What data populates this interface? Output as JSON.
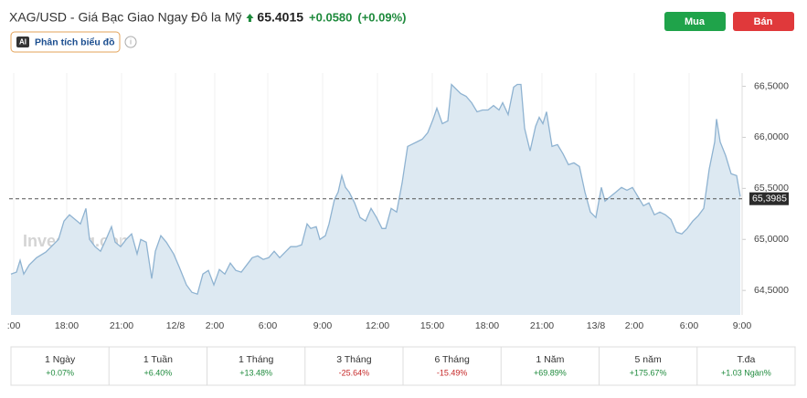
{
  "header": {
    "symbol": "XAG/USD - Giá Bạc Giao Ngay Đô la Mỹ",
    "price": "65.4015",
    "change": "+0.0580",
    "change_pct": "(+0.09%)",
    "ai_badge": "AI",
    "analysis": "Phân tích biểu đồ"
  },
  "buttons": {
    "buy": "Mua",
    "sell": "Bán"
  },
  "chart_data": {
    "type": "area",
    "watermark": "Investing.com",
    "color": "#8fb3d1",
    "fill_color": "#dde9f2",
    "grid": true,
    "x": [
      -0.15,
      0.15,
      0.35,
      0.55,
      0.85,
      1.25,
      1.75,
      2.15,
      2.45,
      2.75,
      3.05,
      3.35,
      3.65,
      3.95,
      4.15,
      4.45,
      4.75,
      5.05,
      5.35,
      5.55,
      5.85,
      6.15,
      6.45,
      6.75,
      6.95,
      7.25,
      7.55,
      7.75,
      8.05,
      8.35,
      8.75,
      9.05,
      9.45,
      9.75,
      10.05,
      10.35,
      10.65,
      10.95,
      11.25,
      11.55,
      11.85,
      12.15,
      12.45,
      12.75,
      13.05,
      13.35,
      13.65,
      13.95,
      14.25,
      14.55,
      14.85,
      15.15,
      15.45,
      15.75,
      16.05,
      16.25,
      16.55,
      16.75,
      17.05,
      17.25,
      17.55,
      17.75,
      17.95,
      18.15,
      18.35,
      18.65,
      18.95,
      19.25,
      19.55,
      19.85,
      20.15,
      20.35,
      20.65,
      20.95,
      21.25,
      21.55,
      21.75,
      22.05,
      22.35,
      22.65,
      22.95,
      23.15,
      23.45,
      23.75,
      23.95,
      24.15,
      24.45,
      24.75,
      25.05,
      25.35,
      25.65,
      25.95,
      26.25,
      26.55,
      26.75,
      27.05,
      27.35,
      27.55,
      27.75,
      27.95,
      28.25,
      28.55,
      28.75,
      28.95,
      29.15,
      29.45,
      29.75,
      30.05,
      30.35,
      30.65,
      30.95,
      31.25,
      31.55,
      31.85,
      32.15,
      32.35,
      32.65,
      32.95,
      33.25,
      33.55,
      33.85,
      34.15,
      34.45,
      34.75,
      35.05,
      35.35,
      35.65,
      35.95,
      36.25,
      36.55,
      36.85,
      37.15,
      37.45,
      37.75,
      38.05,
      38.35,
      38.45,
      38.65,
      38.95,
      39.25,
      39.55,
      39.75
    ],
    "values": [
      64.661,
      64.679,
      64.795,
      64.661,
      64.75,
      64.821,
      64.875,
      64.946,
      65.0,
      65.179,
      65.241,
      65.196,
      65.152,
      65.304,
      65.0,
      64.929,
      64.884,
      65.0,
      65.125,
      64.973,
      64.929,
      65.0,
      65.054,
      64.857,
      65.0,
      64.973,
      64.616,
      64.884,
      65.036,
      64.973,
      64.857,
      64.732,
      64.554,
      64.482,
      64.464,
      64.661,
      64.696,
      64.554,
      64.705,
      64.661,
      64.768,
      64.696,
      64.679,
      64.75,
      64.821,
      64.839,
      64.804,
      64.821,
      64.884,
      64.821,
      64.875,
      64.929,
      64.929,
      64.946,
      65.152,
      65.107,
      65.125,
      65.0,
      65.036,
      65.152,
      65.393,
      65.464,
      65.625,
      65.509,
      65.464,
      65.357,
      65.214,
      65.179,
      65.304,
      65.214,
      65.107,
      65.107,
      65.304,
      65.268,
      65.554,
      65.911,
      65.929,
      65.955,
      65.982,
      66.045,
      66.179,
      66.286,
      66.134,
      66.161,
      66.518,
      66.482,
      66.429,
      66.402,
      66.339,
      66.25,
      66.268,
      66.268,
      66.312,
      66.268,
      66.339,
      66.223,
      66.491,
      66.518,
      66.518,
      66.089,
      65.866,
      66.107,
      66.196,
      66.134,
      66.25,
      65.911,
      65.929,
      65.839,
      65.732,
      65.75,
      65.714,
      65.464,
      65.268,
      65.214,
      65.509,
      65.375,
      65.42,
      65.464,
      65.509,
      65.482,
      65.509,
      65.42,
      65.33,
      65.357,
      65.241,
      65.268,
      65.241,
      65.196,
      65.071,
      65.054,
      65.107,
      65.179,
      65.232,
      65.304,
      65.687,
      65.955,
      66.179,
      65.955,
      65.821,
      65.643,
      65.625,
      65.42
    ],
    "xlim": [
      -0.25,
      39.85
    ],
    "ylim": [
      64.26,
      66.63
    ],
    "xticks": [
      {
        "value": 0,
        "label": ":00"
      },
      {
        "value": 2.9,
        "label": "18:00"
      },
      {
        "value": 5.9,
        "label": "21:00"
      },
      {
        "value": 8.85,
        "label": "12/8"
      },
      {
        "value": 11,
        "label": "2:00"
      },
      {
        "value": 13.9,
        "label": "6:00"
      },
      {
        "value": 16.9,
        "label": "9:00"
      },
      {
        "value": 19.9,
        "label": "12:00"
      },
      {
        "value": 22.9,
        "label": "15:00"
      },
      {
        "value": 25.9,
        "label": "18:00"
      },
      {
        "value": 28.9,
        "label": "21:00"
      },
      {
        "value": 31.85,
        "label": "13/8"
      },
      {
        "value": 33.95,
        "label": "2:00"
      },
      {
        "value": 36.95,
        "label": "6:00"
      },
      {
        "value": 39.85,
        "label": "9:00"
      }
    ],
    "yticks": [
      {
        "value": 64.5,
        "label": "64,5000"
      },
      {
        "value": 65,
        "label": "65,0000"
      },
      {
        "value": 65.5,
        "label": "65,5000"
      },
      {
        "value": 66,
        "label": "66,0000"
      },
      {
        "value": 66.5,
        "label": "66,5000"
      }
    ],
    "price_line": {
      "value": 65.3985,
      "label": "65,3985"
    }
  },
  "periods": [
    {
      "label": "1 Ngày",
      "change": "+0.07%",
      "color": "#1e8a3c"
    },
    {
      "label": "1 Tuần",
      "change": "+6.40%",
      "color": "#1e8a3c"
    },
    {
      "label": "1 Tháng",
      "change": "+13.48%",
      "color": "#1e8a3c"
    },
    {
      "label": "3 Tháng",
      "change": "-25.64%",
      "color": "#c62828"
    },
    {
      "label": "6 Tháng",
      "change": "-15.49%",
      "color": "#c62828"
    },
    {
      "label": "1 Năm",
      "change": "+69.89%",
      "color": "#1e8a3c"
    },
    {
      "label": "5 năm",
      "change": "+175.67%",
      "color": "#1e8a3c"
    },
    {
      "label": "T.đa",
      "change": "+1.03 Ngàn%",
      "color": "#1e8a3c"
    }
  ]
}
